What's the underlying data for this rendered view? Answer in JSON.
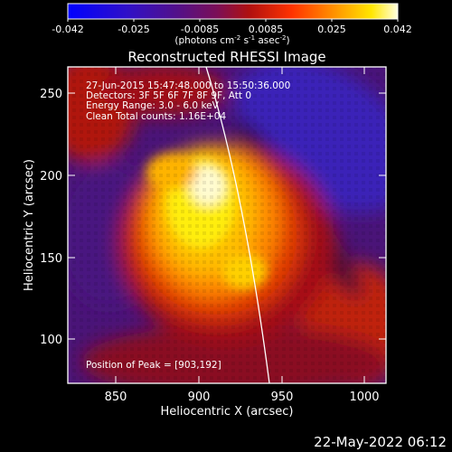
{
  "colorbar": {
    "ticks": [
      "-0.042",
      "-0.025",
      "-0.0085",
      "0.0085",
      "0.025",
      "0.042"
    ],
    "units_parts": [
      "(photons cm",
      "-2",
      " s",
      "-1",
      " asec",
      "-2",
      ")"
    ]
  },
  "plot": {
    "title": "Reconstructed RHESSI Image",
    "info_lines": [
      "27-Jun-2015 15:47:48.000 to 15:50:36.000",
      "Detectors: 3F 5F 6F 7F 8F 9F, Att 0",
      "Energy Range: 3.0 - 6.0 keV",
      "Clean     Total counts: 1.16E+04"
    ],
    "peak_text": "Position of Peak = [903,192]",
    "x_label": "Heliocentric X (arcsec)",
    "y_label": "Heliocentric Y (arcsec)",
    "x_ticks": [
      "850",
      "900",
      "950",
      "1000"
    ],
    "y_ticks": [
      "100",
      "150",
      "200",
      "250"
    ]
  },
  "footer": {
    "timestamp": "22-May-2022 06:12"
  },
  "colors": {
    "background": "#000000",
    "axes": "#ffffff",
    "limb": "#ffffff"
  }
}
